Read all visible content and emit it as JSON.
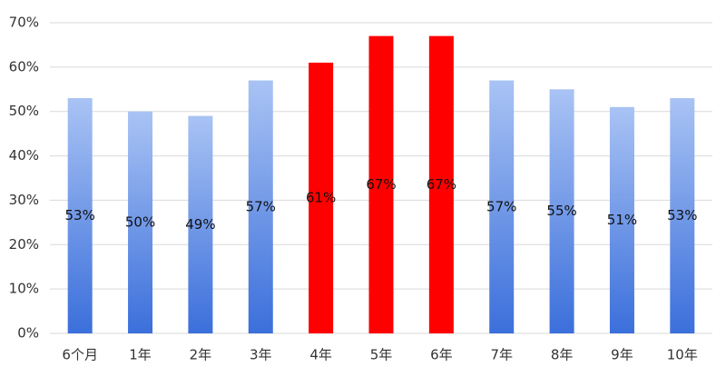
{
  "chart_data": {
    "type": "bar",
    "categories": [
      "6个月",
      "1年",
      "2年",
      "3年",
      "4年",
      "5年",
      "6年",
      "7年",
      "8年",
      "9年",
      "10年"
    ],
    "values": [
      53,
      50,
      49,
      57,
      61,
      67,
      67,
      57,
      55,
      51,
      53
    ],
    "value_labels": [
      "53%",
      "50%",
      "49%",
      "57%",
      "61%",
      "67%",
      "67%",
      "57%",
      "55%",
      "51%",
      "53%"
    ],
    "colors": [
      [
        "#a9c3f4",
        "#3b6fdb"
      ],
      [
        "#a9c3f4",
        "#3b6fdb"
      ],
      [
        "#a9c3f4",
        "#3b6fdb"
      ],
      [
        "#a9c3f4",
        "#3b6fdb"
      ],
      "#ff0000",
      "#ff0000",
      "#ff0000",
      [
        "#a9c3f4",
        "#3b6fdb"
      ],
      [
        "#a9c3f4",
        "#3b6fdb"
      ],
      [
        "#a9c3f4",
        "#3b6fdb"
      ],
      [
        "#a9c3f4",
        "#3b6fdb"
      ]
    ],
    "ylim": [
      0,
      70
    ],
    "yticks": [
      {
        "value": 0,
        "label": "0%"
      },
      {
        "value": 10,
        "label": "10%"
      },
      {
        "value": 20,
        "label": "20%"
      },
      {
        "value": 30,
        "label": "30%"
      },
      {
        "value": 40,
        "label": "40%"
      },
      {
        "value": 50,
        "label": "50%"
      },
      {
        "value": 60,
        "label": "60%"
      },
      {
        "value": 70,
        "label": "70%"
      }
    ],
    "grid": true
  }
}
